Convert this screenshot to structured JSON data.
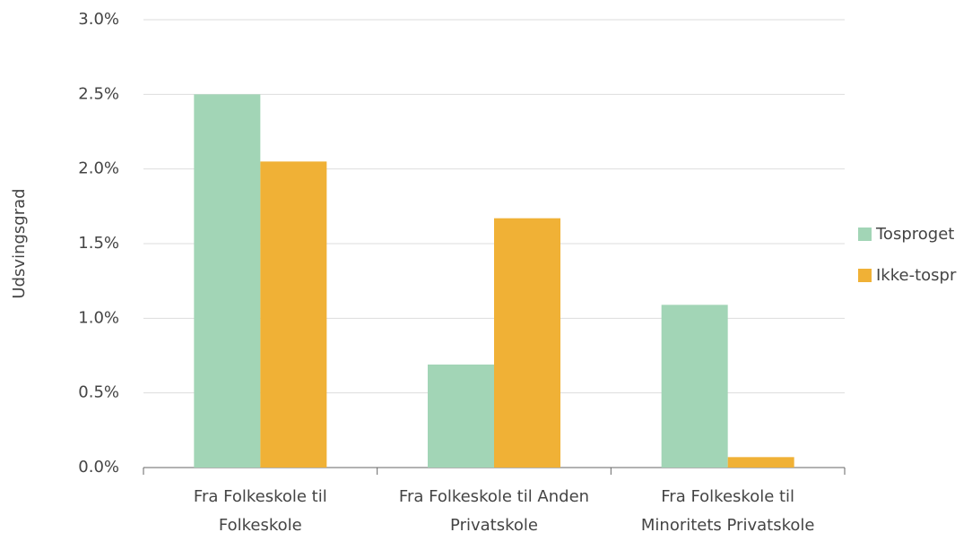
{
  "chart_data": {
    "type": "bar",
    "y_label": "Udsvingsgrad",
    "categories": [
      [
        "Fra Folkeskole til",
        "Folkeskole"
      ],
      [
        "Fra Folkeskole til Anden",
        "Privatskole"
      ],
      [
        "Fra Folkeskole til",
        "Minoritets Privatskole"
      ]
    ],
    "series": [
      {
        "name": "Tosproget",
        "color": "#a2d5b6",
        "values": [
          2.5,
          0.69,
          1.09
        ]
      },
      {
        "name": "Ikke-tospr",
        "color": "#f0b136",
        "values": [
          2.05,
          1.67,
          0.07
        ]
      }
    ],
    "ylim": [
      0,
      3.0
    ],
    "yticks": [
      {
        "value": 0,
        "label": "0.0%"
      },
      {
        "value": 0.5,
        "label": "0.5%"
      },
      {
        "value": 1.0,
        "label": "1.0%"
      },
      {
        "value": 1.5,
        "label": "1.5%"
      },
      {
        "value": 2.0,
        "label": "2.0%"
      },
      {
        "value": 2.5,
        "label": "2.5%"
      },
      {
        "value": 3.0,
        "label": "3.0%"
      }
    ],
    "grid": true,
    "legend": "right"
  }
}
